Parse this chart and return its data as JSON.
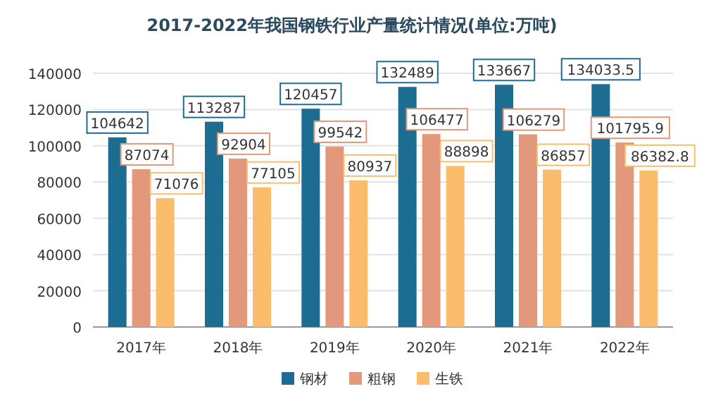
{
  "chart_data": {
    "type": "bar",
    "title": "2017-2022年我国钢铁行业产量统计情况(单位:万吨)",
    "categories": [
      "2017年",
      "2018年",
      "2019年",
      "2020年",
      "2021年",
      "2022年"
    ],
    "series": [
      {
        "name": "钢材",
        "color": "#1d6d92",
        "values": [
          104642,
          113287,
          120457,
          132489,
          133667,
          134033.5
        ],
        "value_labels": [
          "104642",
          "113287",
          "120457",
          "132489",
          "133667",
          "134033.5"
        ]
      },
      {
        "name": "粗钢",
        "color": "#e3987b",
        "values": [
          87074,
          92904,
          99542,
          106477,
          106279,
          101795.9
        ],
        "value_labels": [
          "87074",
          "92904",
          "99542",
          "106477",
          "106279",
          "101795.9"
        ]
      },
      {
        "name": "生铁",
        "color": "#fbbd6b",
        "values": [
          71076,
          77105,
          80937,
          88898,
          86857,
          86382.8
        ],
        "value_labels": [
          "71076",
          "77105",
          "80937",
          "88898",
          "86857",
          "86382.8"
        ]
      }
    ],
    "ylim": [
      0,
      140000
    ],
    "yticks": [
      0,
      20000,
      40000,
      60000,
      80000,
      100000,
      120000,
      140000
    ],
    "grid": "y",
    "legend": "bottom"
  }
}
